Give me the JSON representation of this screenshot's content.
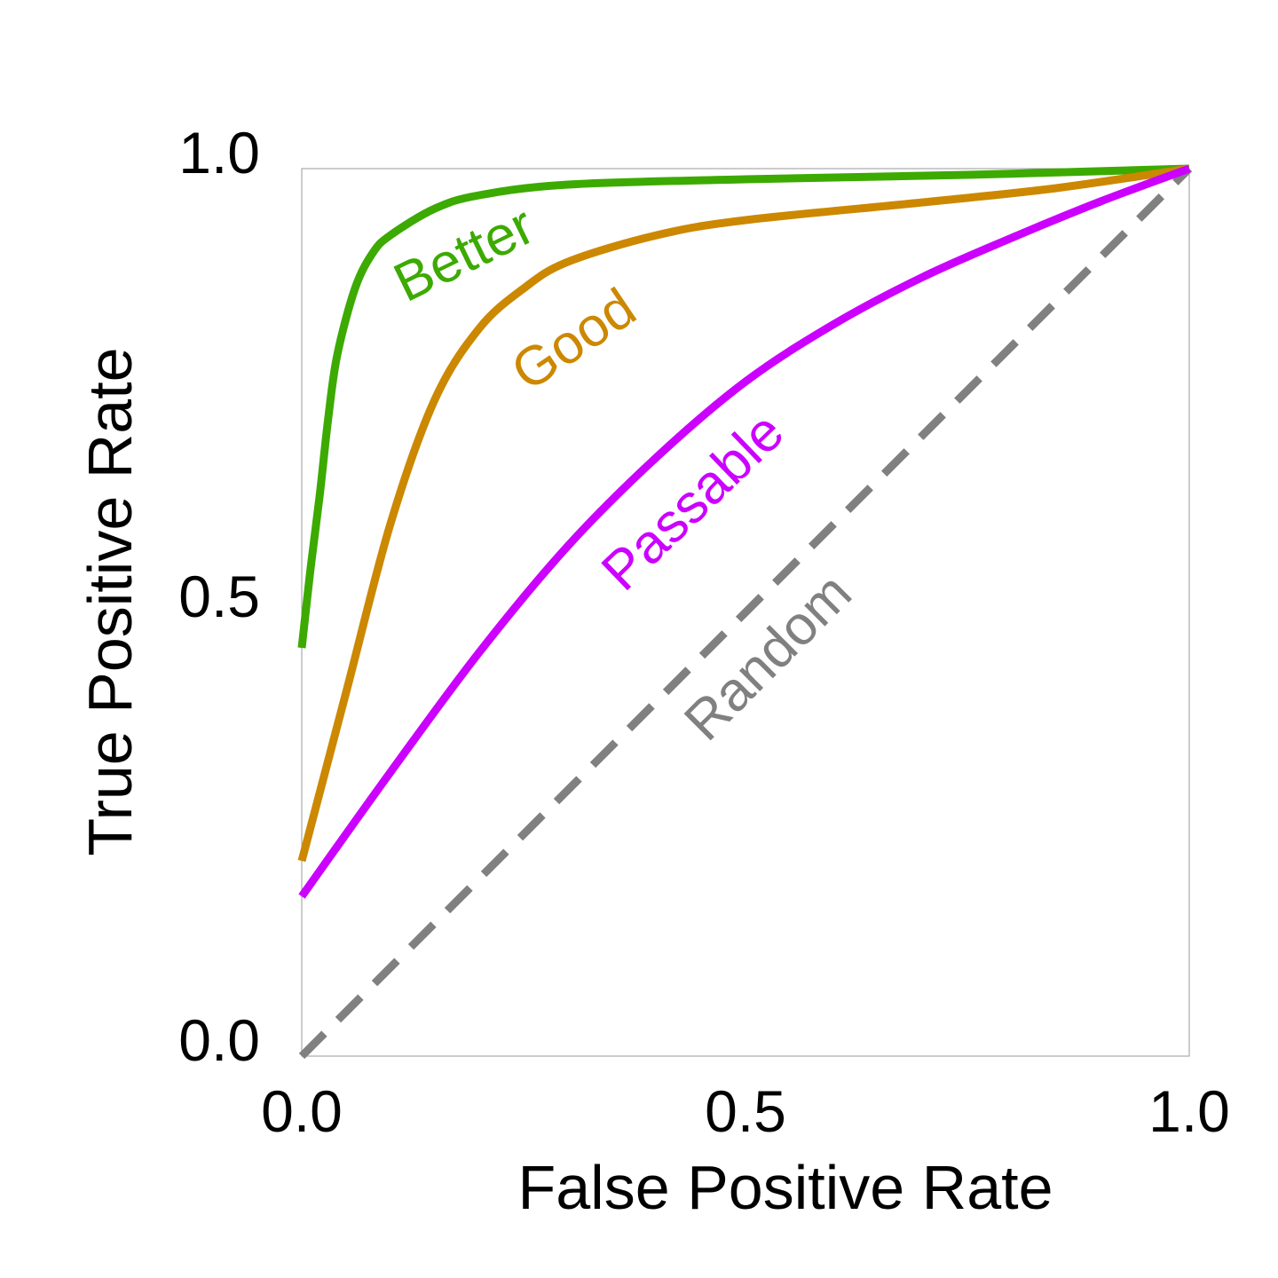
{
  "chart_data": {
    "type": "line",
    "title": "",
    "xlabel": "False Positive Rate",
    "ylabel": "True Positive Rate",
    "xlim": [
      0,
      1
    ],
    "ylim": [
      0,
      1
    ],
    "xticks": [
      "0.0",
      "0.5",
      "1.0"
    ],
    "yticks": [
      "0.0",
      "0.5",
      "1.0"
    ],
    "grid": false,
    "series": [
      {
        "name": "Better",
        "color": "#3caa00",
        "dashed": false,
        "x": [
          0,
          0.01,
          0.02,
          0.03,
          0.04,
          0.06,
          0.08,
          0.1,
          0.15,
          0.2,
          0.3,
          0.5,
          0.75,
          1.0
        ],
        "y": [
          0.46,
          0.55,
          0.63,
          0.72,
          0.79,
          0.865,
          0.905,
          0.925,
          0.955,
          0.97,
          0.982,
          0.988,
          0.993,
          1.0
        ]
      },
      {
        "name": "Good",
        "color": "#cc8800",
        "dashed": false,
        "x": [
          0,
          0.05,
          0.1,
          0.15,
          0.2,
          0.25,
          0.3,
          0.4,
          0.5,
          0.7,
          0.85,
          1.0
        ],
        "y": [
          0.22,
          0.41,
          0.6,
          0.74,
          0.82,
          0.865,
          0.895,
          0.925,
          0.942,
          0.962,
          0.978,
          1.0
        ]
      },
      {
        "name": "Passable",
        "color": "#cc00ff",
        "dashed": false,
        "x": [
          0,
          0.1,
          0.2,
          0.3,
          0.4,
          0.5,
          0.6,
          0.7,
          0.8,
          0.9,
          1.0
        ],
        "y": [
          0.18,
          0.32,
          0.455,
          0.575,
          0.675,
          0.76,
          0.825,
          0.878,
          0.922,
          0.963,
          1.0
        ]
      },
      {
        "name": "Random",
        "color": "#808080",
        "dashed": true,
        "x": [
          0,
          1
        ],
        "y": [
          0,
          1
        ]
      }
    ]
  }
}
